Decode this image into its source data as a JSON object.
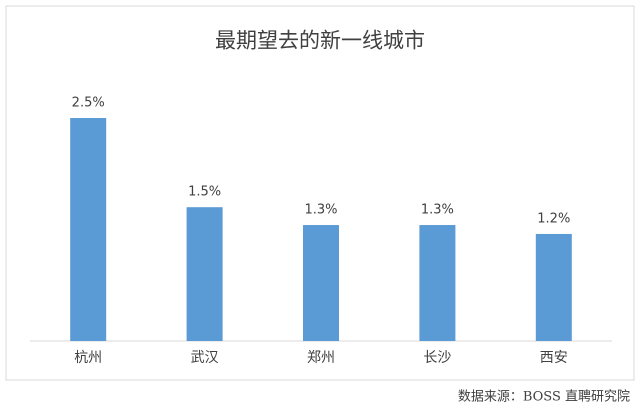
{
  "chart_data": {
    "type": "bar",
    "title": "最期望去的新一线城市",
    "categories": [
      "杭州",
      "武汉",
      "郑州",
      "长沙",
      "西安"
    ],
    "values": [
      2.5,
      1.5,
      1.3,
      1.3,
      1.2
    ],
    "value_labels": [
      "2.5%",
      "1.5%",
      "1.3%",
      "1.3%",
      "1.2%"
    ],
    "color": "#5b9bd5",
    "source": "数据来源：BOSS 直聘研究院"
  }
}
